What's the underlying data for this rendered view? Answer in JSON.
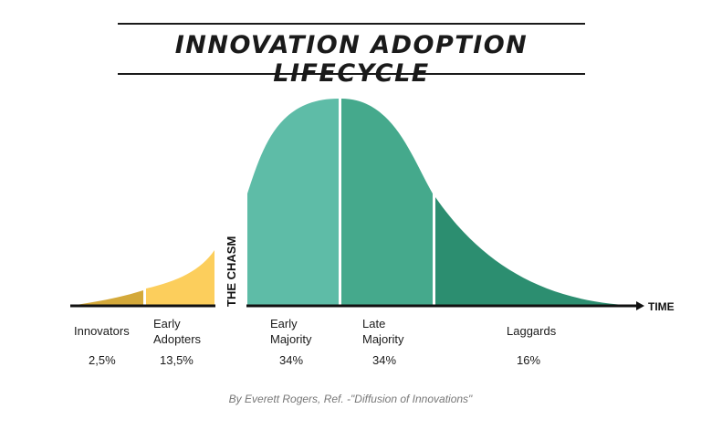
{
  "title": "INNOVATION ADOPTION LIFECYCLE",
  "chasm_label": "THE CHASM",
  "axis_label": "TIME",
  "segments": [
    {
      "label": "Innovators",
      "percent": "2,5%",
      "color": "#D4A93A"
    },
    {
      "label": "Early Adopters",
      "percent": "13,5%",
      "color": "#FCCE5C"
    },
    {
      "label": "Early Majority",
      "percent": "34%",
      "color": "#5EBCA7"
    },
    {
      "label": "Late Majority",
      "percent": "34%",
      "color": "#45A98C"
    },
    {
      "label": "Laggards",
      "percent": "16%",
      "color": "#2C8E70"
    }
  ],
  "credit": "By Everett Rogers, Ref. -\"Diffusion of Innovations\""
}
